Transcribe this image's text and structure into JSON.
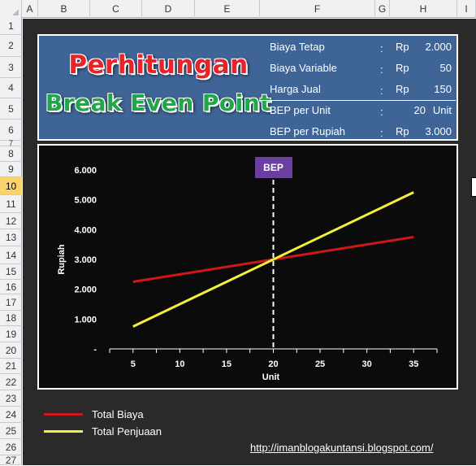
{
  "columns": [
    "A",
    "B",
    "C",
    "D",
    "E",
    "F",
    "G",
    "H",
    "I"
  ],
  "rows": [
    "1",
    "2",
    "3",
    "4",
    "5",
    "6",
    "7",
    "8",
    "9",
    "10",
    "11",
    "12",
    "13",
    "14",
    "15",
    "16",
    "17",
    "18",
    "19",
    "20",
    "21",
    "22",
    "23",
    "24",
    "25",
    "26",
    "27"
  ],
  "selected_row": "10",
  "title_line1": "Perhitungan",
  "title_line2": "Break Even Point",
  "params": [
    {
      "label": "Biaya Tetap",
      "sep": ":",
      "cur": "Rp",
      "value": "2.000"
    },
    {
      "label": "Biaya Variable",
      "sep": ":",
      "cur": "Rp",
      "value": "50"
    },
    {
      "label": "Harga Jual",
      "sep": ":",
      "cur": "Rp",
      "value": "150"
    }
  ],
  "results": [
    {
      "label": "BEP per Unit",
      "sep": ":",
      "cur": "",
      "value": "20",
      "unit": "Unit"
    },
    {
      "label": "BEP per Rupiah",
      "sep": ":",
      "cur": "Rp",
      "value": "3.000",
      "unit": ""
    }
  ],
  "chart_data": {
    "type": "line",
    "x": [
      5,
      35
    ],
    "series": [
      {
        "name": "Total Biaya",
        "values": [
          2250,
          3750
        ],
        "color": "#d01818"
      },
      {
        "name": "Total Penjuaan",
        "values": [
          750,
          5250
        ],
        "color": "#f5f03a"
      }
    ],
    "xlabel": "Unit",
    "ylabel": "Rupiah",
    "x_ticks": [
      "5",
      "10",
      "15",
      "20",
      "25",
      "30",
      "35"
    ],
    "y_ticks": [
      "-",
      "1.000",
      "2.000",
      "3.000",
      "4.000",
      "5.000",
      "6.000"
    ],
    "xlim": [
      2.5,
      37.5
    ],
    "ylim": [
      0,
      6000
    ],
    "bep_label": "BEP",
    "bep_x": 20,
    "grid": false,
    "legend_placement": "bottom-left"
  },
  "link": "http://imanblogakuntansi.blogspot.com/"
}
